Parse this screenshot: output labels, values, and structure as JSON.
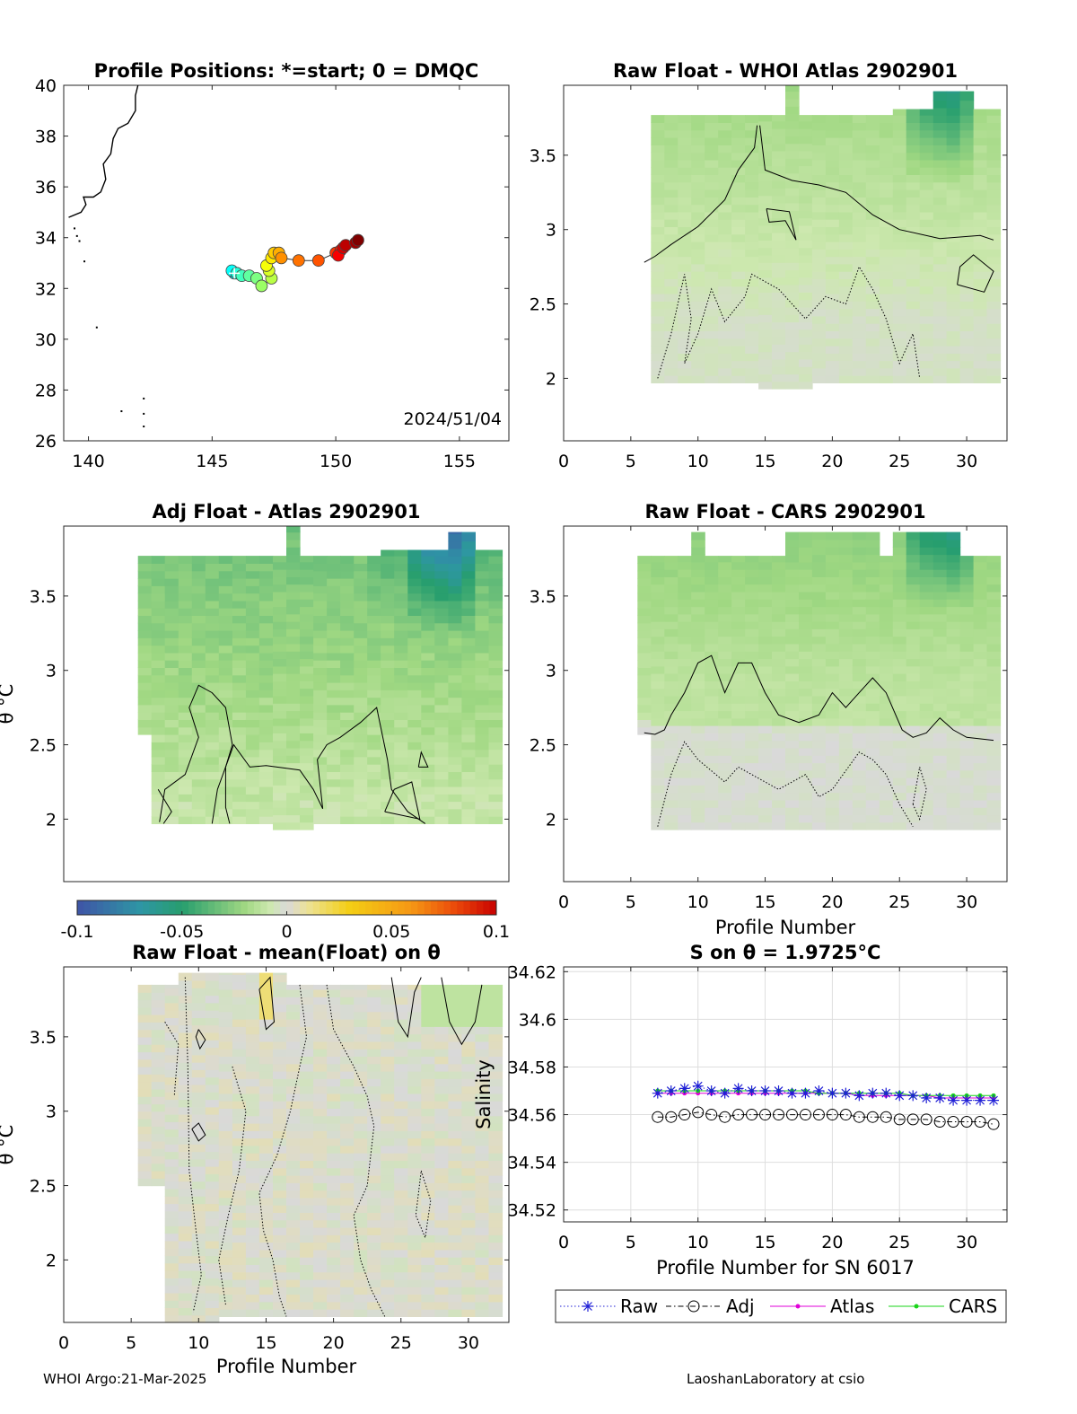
{
  "colors": {
    "negative": "#1a8a6a",
    "neutral": "#d9d9d9",
    "positive": "#d40000",
    "raw_series": "#1f1fd6",
    "adj_series": "#000000",
    "atlas_series": "#e000d8",
    "cars_series": "#19d419"
  },
  "chart_data": [
    {
      "id": "map",
      "type": "scatter",
      "title": "Profile Positions: *=start; 0 = DMQC",
      "xlim": [
        139,
        157
      ],
      "ylim": [
        26,
        40
      ],
      "xticks": [
        "140",
        "145",
        "150",
        "155"
      ],
      "yticks": [
        "26",
        "28",
        "30",
        "32",
        "34",
        "36",
        "38",
        "40"
      ],
      "date_label": "2024/51/04",
      "points": [
        {
          "lon": 145.9,
          "lat": 32.6
        },
        {
          "lon": 145.8,
          "lat": 32.7
        },
        {
          "lon": 146.0,
          "lat": 32.6
        },
        {
          "lon": 146.2,
          "lat": 32.5
        },
        {
          "lon": 146.5,
          "lat": 32.5
        },
        {
          "lon": 146.8,
          "lat": 32.4
        },
        {
          "lon": 147.0,
          "lat": 32.1
        },
        {
          "lon": 147.4,
          "lat": 32.4
        },
        {
          "lon": 147.3,
          "lat": 32.7
        },
        {
          "lon": 147.2,
          "lat": 32.9
        },
        {
          "lon": 147.4,
          "lat": 33.2
        },
        {
          "lon": 147.5,
          "lat": 33.4
        },
        {
          "lon": 147.7,
          "lat": 33.4
        },
        {
          "lon": 147.8,
          "lat": 33.2
        },
        {
          "lon": 148.5,
          "lat": 33.1
        },
        {
          "lon": 149.3,
          "lat": 33.1
        },
        {
          "lon": 150.0,
          "lat": 33.4
        },
        {
          "lon": 150.2,
          "lat": 33.5
        },
        {
          "lon": 150.1,
          "lat": 33.3
        },
        {
          "lon": 150.3,
          "lat": 33.6
        },
        {
          "lon": 150.4,
          "lat": 33.7
        },
        {
          "lon": 150.8,
          "lat": 33.8
        },
        {
          "lon": 150.9,
          "lat": 33.9
        }
      ]
    },
    {
      "id": "raw_atlas",
      "type": "heatmap",
      "title": "Raw Float - WHOI Atlas  2902901",
      "xlim": [
        0,
        33
      ],
      "ylim": [
        1.58,
        3.97
      ],
      "xticks": [
        "0",
        "5",
        "10",
        "15",
        "20",
        "25",
        "30"
      ],
      "yticks": [
        "2",
        "2.5",
        "3",
        "3.5"
      ]
    },
    {
      "id": "adj_atlas",
      "type": "heatmap",
      "title": "Adj Float - Atlas  2902901",
      "xlim": [
        0,
        33
      ],
      "ylim": [
        1.58,
        3.97
      ],
      "ylabel": "θ °C",
      "yticks": [
        "2",
        "2.5",
        "3",
        "3.5"
      ]
    },
    {
      "id": "raw_cars",
      "type": "heatmap",
      "title": "Raw Float - CARS  2902901",
      "xlim": [
        0,
        33
      ],
      "ylim": [
        1.58,
        3.97
      ],
      "xlabel": "Profile Number",
      "xticks": [
        "0",
        "5",
        "10",
        "15",
        "20",
        "25",
        "30"
      ],
      "yticks": [
        "2",
        "2.5",
        "3",
        "3.5"
      ]
    },
    {
      "id": "colorbar",
      "type": "heatmap",
      "clim": [
        -0.1,
        0.1
      ],
      "ticks": [
        "-0.1",
        "-0.05",
        "0",
        "0.05",
        "0.1"
      ]
    },
    {
      "id": "raw_mean",
      "type": "heatmap",
      "title": "Raw Float - mean(Float) on θ",
      "xlim": [
        0,
        33
      ],
      "ylim": [
        1.58,
        3.97
      ],
      "xlabel": "Profile Number",
      "ylabel": "θ °C",
      "xticks": [
        "0",
        "5",
        "10",
        "15",
        "20",
        "25",
        "30"
      ],
      "yticks": [
        "2",
        "2.5",
        "3",
        "3.5"
      ]
    },
    {
      "id": "salinity",
      "type": "line",
      "title": "S on θ = 1.9725°C",
      "xlabel": "Profile Number for SN 6017",
      "ylabel": "Salinity",
      "xlim": [
        0,
        33
      ],
      "ylim": [
        34.515,
        34.622
      ],
      "xticks": [
        "0",
        "5",
        "10",
        "15",
        "20",
        "25",
        "30"
      ],
      "yticks": [
        "34.52",
        "34.54",
        "34.56",
        "34.58",
        "34.6",
        "34.62"
      ],
      "x": [
        7,
        8,
        9,
        10,
        11,
        12,
        13,
        14,
        15,
        16,
        17,
        18,
        19,
        20,
        21,
        22,
        23,
        24,
        25,
        26,
        27,
        28,
        29,
        30,
        31,
        32
      ],
      "series": [
        {
          "name": "Raw",
          "values": [
            34.569,
            34.57,
            34.571,
            34.572,
            34.57,
            34.569,
            34.571,
            34.57,
            34.57,
            34.57,
            34.569,
            34.569,
            34.57,
            34.569,
            34.569,
            34.568,
            34.569,
            34.569,
            34.568,
            34.568,
            34.567,
            34.567,
            34.566,
            34.566,
            34.566,
            34.566
          ]
        },
        {
          "name": "Adj",
          "values": [
            34.559,
            34.559,
            34.56,
            34.561,
            34.56,
            34.559,
            34.56,
            34.56,
            34.56,
            34.56,
            34.56,
            34.56,
            34.56,
            34.56,
            34.56,
            34.559,
            34.559,
            34.559,
            34.558,
            34.558,
            34.558,
            34.557,
            34.557,
            34.557,
            34.557,
            34.556
          ]
        },
        {
          "name": "Atlas",
          "values": [
            34.569,
            34.569,
            34.569,
            34.569,
            34.569,
            34.569,
            34.569,
            34.569,
            34.569,
            34.569,
            34.569,
            34.569,
            34.569,
            34.569,
            34.569,
            34.568,
            34.568,
            34.568,
            34.568,
            34.568,
            34.568,
            34.567,
            34.567,
            34.567,
            34.567,
            34.567
          ]
        },
        {
          "name": "CARS",
          "values": [
            34.57,
            34.57,
            34.57,
            34.57,
            34.57,
            34.57,
            34.57,
            34.57,
            34.57,
            34.57,
            34.57,
            34.57,
            34.569,
            34.569,
            34.569,
            34.569,
            34.569,
            34.569,
            34.569,
            34.568,
            34.568,
            34.568,
            34.568,
            34.568,
            34.568,
            34.568
          ]
        }
      ]
    }
  ],
  "footer": {
    "left": "WHOI Argo:21-Mar-2025",
    "right": "LaoshanLaboratory at csio"
  }
}
